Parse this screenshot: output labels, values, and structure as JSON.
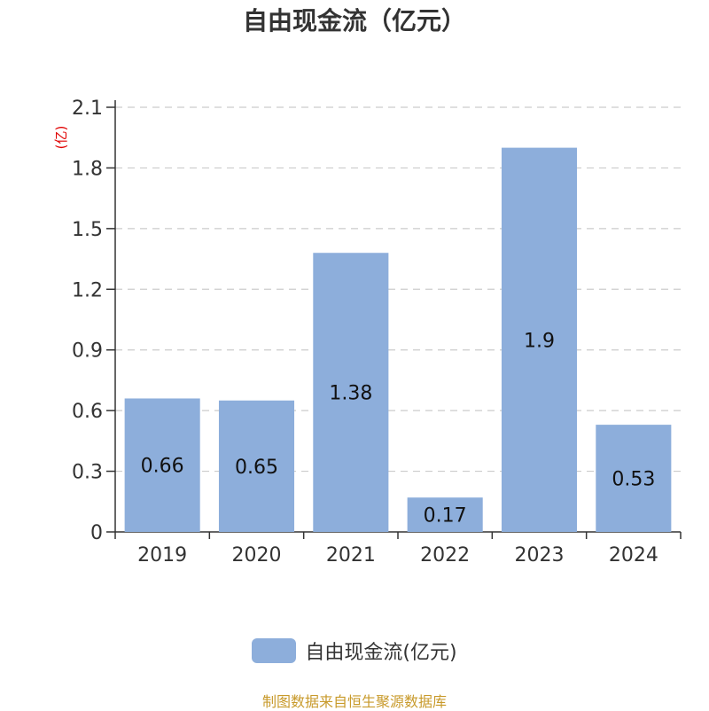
{
  "colors": {
    "bar": "#8daedb",
    "text": "#333333",
    "grid": "#cccccc",
    "unit": "#e00000",
    "source": "#c89a2b"
  },
  "chart_data": {
    "type": "bar",
    "title": "自由现金流（亿元）",
    "ylabel": "(亿)",
    "categories": [
      "2019",
      "2020",
      "2021",
      "2022",
      "2023",
      "2024"
    ],
    "series": [
      {
        "name": "自由现金流(亿元)",
        "values": [
          0.66,
          0.65,
          1.38,
          0.17,
          1.9,
          0.53
        ],
        "labels": [
          "0.66",
          "0.65",
          "1.38",
          "0.17",
          "1.9",
          "0.53"
        ]
      }
    ],
    "ylim": [
      0,
      2.1
    ],
    "yticks": [
      "0",
      "0.3",
      "0.6",
      "0.9",
      "1.2",
      "1.5",
      "1.8",
      "2.1"
    ],
    "grid": true,
    "legend_position": "bottom"
  },
  "footer": {
    "source": "制图数据来自恒生聚源数据库"
  }
}
